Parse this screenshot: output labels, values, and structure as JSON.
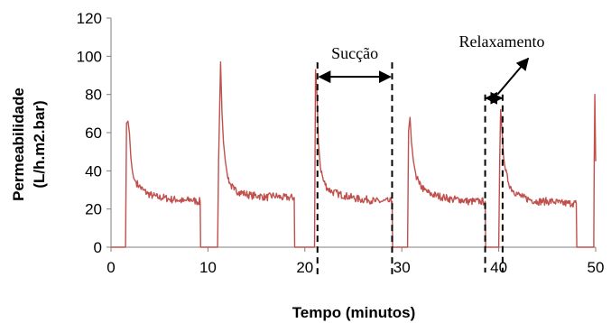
{
  "chart_data": {
    "type": "line",
    "xlabel": "Tempo (minutos)",
    "ylabel_line1": "Permeabilidade",
    "ylabel_line2": "(L/h.m2.bar)",
    "xlim": [
      0,
      50
    ],
    "ylim": [
      0,
      120
    ],
    "xticks": [
      0,
      10,
      20,
      30,
      40,
      50
    ],
    "yticks": [
      0,
      20,
      40,
      60,
      80,
      100,
      120
    ],
    "grid": false,
    "legend": "none",
    "series_color": "#C0504D",
    "series": [
      {
        "x": [
          0,
          1.5,
          1.6,
          1.75,
          1.9,
          2.05,
          2.2,
          2.35,
          2.6,
          2.9,
          3.3,
          3.8,
          4.3,
          4.9,
          5.5,
          6.1,
          6.8,
          7.5,
          8.2,
          8.8,
          9.2,
          9.25,
          9.7,
          11.0,
          11.1,
          11.3,
          11.45,
          11.6,
          11.8,
          12.0,
          12.3,
          12.7,
          13.2,
          13.8,
          14.5,
          15.2,
          16.0,
          16.8,
          17.6,
          18.3,
          18.9,
          18.95,
          19.5,
          21.0,
          21.1,
          21.25,
          21.4,
          21.6,
          21.9,
          22.3,
          22.8,
          23.4,
          24.1,
          24.9,
          25.7,
          26.5,
          27.3,
          28.0,
          28.6,
          29.0,
          29.05,
          30.6,
          30.7,
          30.85,
          31.0,
          31.2,
          31.45,
          31.8,
          32.3,
          32.9,
          33.6,
          34.4,
          35.2,
          36.0,
          36.8,
          37.5,
          38.1,
          38.6,
          38.65,
          40.0,
          40.1,
          40.2,
          40.35,
          40.5,
          40.7,
          41.0,
          41.4,
          41.9,
          42.5,
          43.2,
          44.0,
          44.8,
          45.6,
          46.4,
          47.1,
          47.6,
          48.0,
          48.05,
          49.8,
          49.85,
          49.92,
          50.0
        ],
        "y": [
          0,
          0,
          65,
          66,
          60,
          47,
          40,
          36,
          34,
          32,
          30,
          28,
          27,
          26,
          26,
          25,
          25,
          24,
          25,
          24,
          24,
          0,
          0,
          0,
          45,
          97,
          70,
          55,
          45,
          38,
          33,
          30,
          29,
          28,
          27,
          27,
          26,
          27,
          26,
          26,
          26,
          0,
          0,
          0,
          93,
          80,
          55,
          42,
          35,
          31,
          29,
          28,
          27,
          26,
          25,
          25,
          24,
          24,
          24,
          24,
          0,
          0,
          61,
          68,
          55,
          45,
          38,
          33,
          30,
          28,
          27,
          26,
          25,
          25,
          24,
          24,
          24,
          24,
          0,
          0,
          46,
          72,
          60,
          47,
          40,
          34,
          30,
          28,
          26,
          25,
          24,
          24,
          24,
          23,
          23,
          23,
          23,
          0,
          0,
          45,
          80,
          45
        ]
      }
    ],
    "annotations": [
      {
        "text": "Sucção",
        "x_from": 21.3,
        "x_to": 29.0,
        "y": 93
      },
      {
        "text": "Relaxamento",
        "x_from": 38.6,
        "x_to": 40.4,
        "y": 79
      }
    ]
  }
}
